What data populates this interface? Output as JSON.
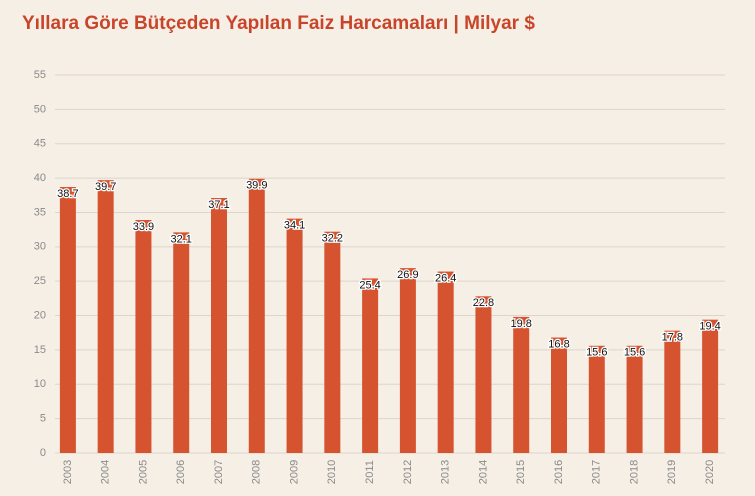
{
  "chart_data": {
    "type": "bar",
    "title": "Yıllara Göre Bütçeden Yapılan Faiz Harcamaları | Milyar $",
    "categories": [
      "2003",
      "2004",
      "2005",
      "2006",
      "2007",
      "2008",
      "2009",
      "2010",
      "2011",
      "2012",
      "2013",
      "2014",
      "2015",
      "2016",
      "2017",
      "2018",
      "2019",
      "2020"
    ],
    "values": [
      38.7,
      39.7,
      33.9,
      32.1,
      37.1,
      39.9,
      34.1,
      32.2,
      25.4,
      26.9,
      26.4,
      22.8,
      19.8,
      16.8,
      15.6,
      15.6,
      17.8,
      19.4
    ],
    "color": "#d6532f",
    "ylim": [
      0,
      55
    ],
    "yticks": [
      0,
      5,
      10,
      15,
      20,
      25,
      30,
      35,
      40,
      45,
      50,
      55
    ],
    "grid": true
  }
}
